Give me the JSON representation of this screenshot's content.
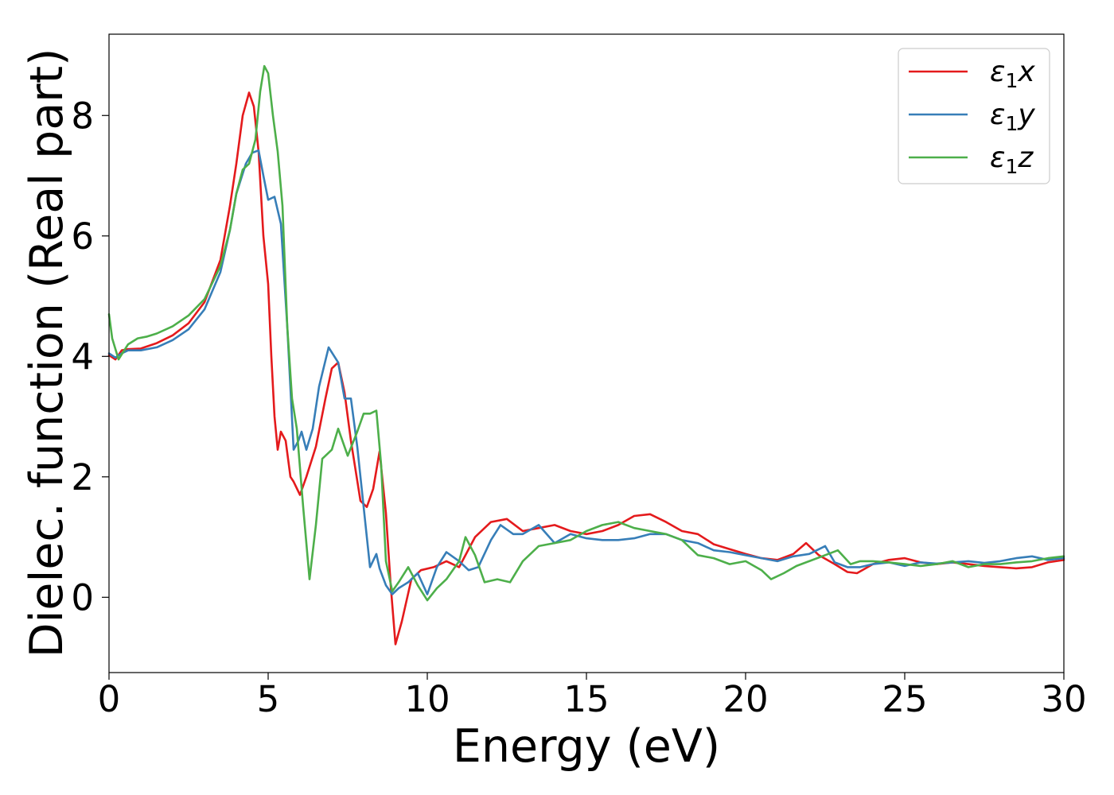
{
  "chart_data": {
    "type": "line",
    "xlabel": "Energy (eV)",
    "ylabel": "Dielec. function (Real part)",
    "xlim": [
      0,
      30
    ],
    "ylim": [
      -1.25,
      9.35
    ],
    "xticks": [
      0,
      5,
      10,
      15,
      20,
      25,
      30
    ],
    "yticks": [
      0,
      2,
      4,
      6,
      8
    ],
    "grid": false,
    "legend_position": "top-right",
    "series": [
      {
        "name": "ε₁x",
        "legend_main": "ε",
        "legend_sub": "1",
        "legend_var": "x",
        "color": "#e41a1c",
        "points": [
          [
            0,
            4.02
          ],
          [
            0.2,
            3.95
          ],
          [
            0.4,
            4.1
          ],
          [
            0.6,
            4.12
          ],
          [
            1,
            4.13
          ],
          [
            1.5,
            4.22
          ],
          [
            2,
            4.35
          ],
          [
            2.5,
            4.55
          ],
          [
            3,
            4.9
          ],
          [
            3.5,
            5.6
          ],
          [
            3.8,
            6.5
          ],
          [
            4.0,
            7.2
          ],
          [
            4.2,
            8.0
          ],
          [
            4.4,
            8.38
          ],
          [
            4.55,
            8.15
          ],
          [
            4.7,
            7.4
          ],
          [
            4.85,
            6.0
          ],
          [
            5.0,
            5.2
          ],
          [
            5.1,
            4.0
          ],
          [
            5.2,
            3.0
          ],
          [
            5.3,
            2.45
          ],
          [
            5.4,
            2.75
          ],
          [
            5.55,
            2.6
          ],
          [
            5.7,
            2.0
          ],
          [
            5.8,
            1.92
          ],
          [
            6.0,
            1.7
          ],
          [
            6.2,
            2.0
          ],
          [
            6.5,
            2.5
          ],
          [
            6.8,
            3.3
          ],
          [
            7.0,
            3.8
          ],
          [
            7.2,
            3.9
          ],
          [
            7.4,
            3.4
          ],
          [
            7.6,
            2.6
          ],
          [
            7.9,
            1.6
          ],
          [
            8.1,
            1.5
          ],
          [
            8.3,
            1.8
          ],
          [
            8.5,
            2.42
          ],
          [
            8.7,
            1.4
          ],
          [
            8.85,
            0.2
          ],
          [
            9.0,
            -0.78
          ],
          [
            9.2,
            -0.4
          ],
          [
            9.5,
            0.3
          ],
          [
            9.8,
            0.45
          ],
          [
            10.2,
            0.5
          ],
          [
            10.6,
            0.6
          ],
          [
            11.0,
            0.5
          ],
          [
            11.5,
            1.0
          ],
          [
            12.0,
            1.25
          ],
          [
            12.5,
            1.3
          ],
          [
            13.0,
            1.1
          ],
          [
            13.5,
            1.15
          ],
          [
            14.0,
            1.2
          ],
          [
            14.5,
            1.1
          ],
          [
            15.0,
            1.05
          ],
          [
            15.5,
            1.1
          ],
          [
            16.0,
            1.2
          ],
          [
            16.5,
            1.35
          ],
          [
            17.0,
            1.38
          ],
          [
            17.5,
            1.25
          ],
          [
            18.0,
            1.1
          ],
          [
            18.5,
            1.05
          ],
          [
            19.0,
            0.88
          ],
          [
            19.5,
            0.8
          ],
          [
            20.0,
            0.72
          ],
          [
            20.5,
            0.65
          ],
          [
            21.0,
            0.62
          ],
          [
            21.5,
            0.72
          ],
          [
            21.9,
            0.9
          ],
          [
            22.3,
            0.7
          ],
          [
            22.8,
            0.55
          ],
          [
            23.2,
            0.42
          ],
          [
            23.5,
            0.4
          ],
          [
            24.0,
            0.55
          ],
          [
            24.5,
            0.62
          ],
          [
            25.0,
            0.65
          ],
          [
            25.5,
            0.58
          ],
          [
            26.0,
            0.55
          ],
          [
            26.5,
            0.58
          ],
          [
            27.0,
            0.55
          ],
          [
            27.5,
            0.52
          ],
          [
            28.0,
            0.5
          ],
          [
            28.5,
            0.48
          ],
          [
            29.0,
            0.5
          ],
          [
            29.5,
            0.58
          ],
          [
            30,
            0.62
          ]
        ]
      },
      {
        "name": "ε₁y",
        "legend_main": "ε",
        "legend_sub": "1",
        "legend_var": "y",
        "color": "#377eb8",
        "points": [
          [
            0,
            4.05
          ],
          [
            0.2,
            3.98
          ],
          [
            0.4,
            4.05
          ],
          [
            0.6,
            4.1
          ],
          [
            1,
            4.1
          ],
          [
            1.5,
            4.15
          ],
          [
            2,
            4.27
          ],
          [
            2.5,
            4.45
          ],
          [
            3,
            4.78
          ],
          [
            3.5,
            5.4
          ],
          [
            3.8,
            6.1
          ],
          [
            4.0,
            6.7
          ],
          [
            4.3,
            7.2
          ],
          [
            4.5,
            7.38
          ],
          [
            4.7,
            7.42
          ],
          [
            4.85,
            7.0
          ],
          [
            5.0,
            6.6
          ],
          [
            5.2,
            6.65
          ],
          [
            5.4,
            6.2
          ],
          [
            5.6,
            4.5
          ],
          [
            5.8,
            2.45
          ],
          [
            5.95,
            2.6
          ],
          [
            6.05,
            2.75
          ],
          [
            6.2,
            2.45
          ],
          [
            6.4,
            2.8
          ],
          [
            6.6,
            3.5
          ],
          [
            6.9,
            4.15
          ],
          [
            7.2,
            3.9
          ],
          [
            7.4,
            3.3
          ],
          [
            7.6,
            3.3
          ],
          [
            7.8,
            2.5
          ],
          [
            8.0,
            1.5
          ],
          [
            8.2,
            0.5
          ],
          [
            8.4,
            0.72
          ],
          [
            8.5,
            0.48
          ],
          [
            8.7,
            0.2
          ],
          [
            8.9,
            0.05
          ],
          [
            9.1,
            0.15
          ],
          [
            9.4,
            0.25
          ],
          [
            9.7,
            0.4
          ],
          [
            10.0,
            0.05
          ],
          [
            10.3,
            0.5
          ],
          [
            10.6,
            0.75
          ],
          [
            11.0,
            0.6
          ],
          [
            11.3,
            0.45
          ],
          [
            11.6,
            0.5
          ],
          [
            12.0,
            0.95
          ],
          [
            12.3,
            1.2
          ],
          [
            12.7,
            1.05
          ],
          [
            13.0,
            1.05
          ],
          [
            13.5,
            1.2
          ],
          [
            14.0,
            0.9
          ],
          [
            14.5,
            1.05
          ],
          [
            15.0,
            0.98
          ],
          [
            15.5,
            0.95
          ],
          [
            16.0,
            0.95
          ],
          [
            16.5,
            0.98
          ],
          [
            17.0,
            1.05
          ],
          [
            17.5,
            1.05
          ],
          [
            18.0,
            0.95
          ],
          [
            18.5,
            0.9
          ],
          [
            19.0,
            0.78
          ],
          [
            19.5,
            0.75
          ],
          [
            20.0,
            0.7
          ],
          [
            20.5,
            0.65
          ],
          [
            21.0,
            0.6
          ],
          [
            21.5,
            0.68
          ],
          [
            22.0,
            0.72
          ],
          [
            22.5,
            0.85
          ],
          [
            22.8,
            0.58
          ],
          [
            23.2,
            0.5
          ],
          [
            23.6,
            0.5
          ],
          [
            24.0,
            0.55
          ],
          [
            24.5,
            0.58
          ],
          [
            25.0,
            0.52
          ],
          [
            25.5,
            0.58
          ],
          [
            26.0,
            0.56
          ],
          [
            26.5,
            0.58
          ],
          [
            27.0,
            0.6
          ],
          [
            27.5,
            0.57
          ],
          [
            28.0,
            0.6
          ],
          [
            28.5,
            0.65
          ],
          [
            29.0,
            0.68
          ],
          [
            29.5,
            0.62
          ],
          [
            30,
            0.65
          ]
        ]
      },
      {
        "name": "ε₁z",
        "legend_main": "ε",
        "legend_sub": "1",
        "legend_var": "z",
        "color": "#4daf4a",
        "points": [
          [
            0,
            4.7
          ],
          [
            0.1,
            4.3
          ],
          [
            0.3,
            3.95
          ],
          [
            0.6,
            4.2
          ],
          [
            0.9,
            4.3
          ],
          [
            1.2,
            4.33
          ],
          [
            1.5,
            4.38
          ],
          [
            2,
            4.5
          ],
          [
            2.5,
            4.68
          ],
          [
            3,
            4.95
          ],
          [
            3.5,
            5.5
          ],
          [
            3.8,
            6.1
          ],
          [
            4.0,
            6.7
          ],
          [
            4.2,
            7.1
          ],
          [
            4.4,
            7.2
          ],
          [
            4.6,
            7.6
          ],
          [
            4.75,
            8.4
          ],
          [
            4.88,
            8.82
          ],
          [
            5.0,
            8.7
          ],
          [
            5.15,
            8.0
          ],
          [
            5.3,
            7.4
          ],
          [
            5.45,
            6.5
          ],
          [
            5.6,
            4.5
          ],
          [
            5.75,
            3.3
          ],
          [
            5.9,
            2.8
          ],
          [
            6.1,
            1.5
          ],
          [
            6.3,
            0.3
          ],
          [
            6.5,
            1.2
          ],
          [
            6.7,
            2.3
          ],
          [
            7.0,
            2.45
          ],
          [
            7.2,
            2.8
          ],
          [
            7.5,
            2.35
          ],
          [
            7.8,
            2.75
          ],
          [
            8.0,
            3.05
          ],
          [
            8.2,
            3.05
          ],
          [
            8.4,
            3.1
          ],
          [
            8.55,
            2.2
          ],
          [
            8.7,
            0.6
          ],
          [
            8.9,
            0.1
          ],
          [
            9.1,
            0.25
          ],
          [
            9.4,
            0.5
          ],
          [
            9.7,
            0.2
          ],
          [
            10.0,
            -0.05
          ],
          [
            10.3,
            0.15
          ],
          [
            10.6,
            0.3
          ],
          [
            11.0,
            0.6
          ],
          [
            11.2,
            1.0
          ],
          [
            11.5,
            0.7
          ],
          [
            11.8,
            0.25
          ],
          [
            12.2,
            0.3
          ],
          [
            12.6,
            0.25
          ],
          [
            13.0,
            0.6
          ],
          [
            13.5,
            0.85
          ],
          [
            14.0,
            0.9
          ],
          [
            14.5,
            0.95
          ],
          [
            15.0,
            1.1
          ],
          [
            15.5,
            1.2
          ],
          [
            16.0,
            1.25
          ],
          [
            16.5,
            1.15
          ],
          [
            17.0,
            1.1
          ],
          [
            17.5,
            1.05
          ],
          [
            18.0,
            0.95
          ],
          [
            18.5,
            0.7
          ],
          [
            19.0,
            0.65
          ],
          [
            19.5,
            0.55
          ],
          [
            20.0,
            0.6
          ],
          [
            20.5,
            0.45
          ],
          [
            20.8,
            0.3
          ],
          [
            21.2,
            0.4
          ],
          [
            21.6,
            0.52
          ],
          [
            22.0,
            0.6
          ],
          [
            22.5,
            0.7
          ],
          [
            22.9,
            0.78
          ],
          [
            23.3,
            0.55
          ],
          [
            23.6,
            0.6
          ],
          [
            24.0,
            0.6
          ],
          [
            24.5,
            0.58
          ],
          [
            25.0,
            0.55
          ],
          [
            25.5,
            0.52
          ],
          [
            26.0,
            0.55
          ],
          [
            26.5,
            0.6
          ],
          [
            27.0,
            0.5
          ],
          [
            27.5,
            0.55
          ],
          [
            28.0,
            0.55
          ],
          [
            28.5,
            0.58
          ],
          [
            29.0,
            0.6
          ],
          [
            29.5,
            0.65
          ],
          [
            30,
            0.68
          ]
        ]
      }
    ]
  }
}
